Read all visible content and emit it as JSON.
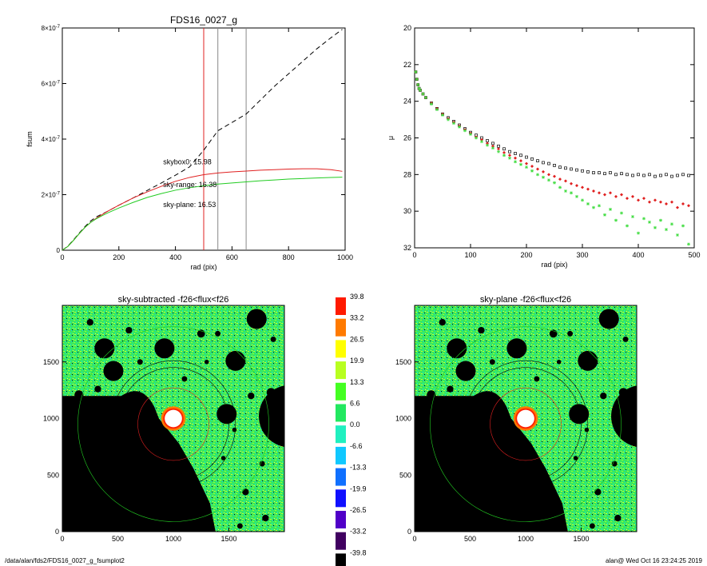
{
  "footer": {
    "path": "/data/alan/fds2/FDS16_0027_g_fsumplot2",
    "stamp": "alan@  Wed Oct 16 23:24:25 2019"
  },
  "chart_data": [
    {
      "type": "line",
      "title": "FDS16_0027_g",
      "xlabel": "rad (pix)",
      "ylabel": "fsum",
      "xlim": [
        0,
        1000
      ],
      "ylim": [
        0,
        8e-07
      ],
      "xticks": [
        0,
        200,
        400,
        600,
        800,
        1000
      ],
      "xtick_labels": [
        "0",
        "200",
        "400",
        "600",
        "800",
        "1000"
      ],
      "yticks": [
        0,
        2e-07,
        4e-07,
        6e-07,
        8e-07
      ],
      "ytick_labels": [
        {
          "base": "0",
          "exp": ""
        },
        {
          "base": "2×10",
          "exp": "-7"
        },
        {
          "base": "4×10",
          "exp": "-7"
        },
        {
          "base": "6×10",
          "exp": "-7"
        },
        {
          "base": "8×10",
          "exp": "-7"
        }
      ],
      "vlines": [
        {
          "x": 500,
          "color": "#e02020"
        },
        {
          "x": 550,
          "color": "#888888"
        },
        {
          "x": 650,
          "color": "#888888"
        }
      ],
      "series": [
        {
          "color": "#000000",
          "dash": true,
          "x": [
            0,
            20,
            40,
            60,
            80,
            100,
            120,
            140,
            160,
            200,
            250,
            300,
            350,
            400,
            450,
            500,
            550,
            600,
            650,
            700,
            750,
            800,
            850,
            900,
            950,
            990
          ],
          "y": [
            0,
            1.5e-08,
            3.8e-08,
            6.2e-08,
            8.5e-08,
            1.05e-07,
            1.2e-07,
            1.3e-07,
            1.4e-07,
            1.62e-07,
            1.88e-07,
            2.15e-07,
            2.42e-07,
            2.7e-07,
            3e-07,
            3.6e-07,
            4.3e-07,
            4.6e-07,
            4.9e-07,
            5.4e-07,
            5.9e-07,
            6.35e-07,
            6.8e-07,
            7.25e-07,
            7.65e-07,
            7.95e-07
          ]
        },
        {
          "color": "#e02020",
          "dash": false,
          "x": [
            0,
            20,
            40,
            60,
            80,
            100,
            120,
            140,
            160,
            200,
            250,
            300,
            350,
            400,
            450,
            500,
            550,
            600,
            650,
            700,
            750,
            800,
            850,
            900,
            950,
            990
          ],
          "y": [
            0,
            1.4e-08,
            3.6e-08,
            6e-08,
            8.2e-08,
            1e-07,
            1.15e-07,
            1.28e-07,
            1.4e-07,
            1.62e-07,
            1.88e-07,
            2.1e-07,
            2.3e-07,
            2.48e-07,
            2.62e-07,
            2.72e-07,
            2.78e-07,
            2.82e-07,
            2.85e-07,
            2.88e-07,
            2.9e-07,
            2.92e-07,
            2.93e-07,
            2.93e-07,
            2.9e-07,
            2.84e-07
          ]
        },
        {
          "color": "#22cc22",
          "dash": false,
          "x": [
            0,
            20,
            40,
            60,
            80,
            100,
            120,
            140,
            160,
            200,
            250,
            300,
            350,
            400,
            450,
            500,
            550,
            600,
            650,
            700,
            750,
            800,
            850,
            900,
            950,
            990
          ],
          "y": [
            0,
            1.4e-08,
            3.6e-08,
            6e-08,
            8.2e-08,
            1e-07,
            1.13e-07,
            1.24e-07,
            1.34e-07,
            1.52e-07,
            1.72e-07,
            1.9e-07,
            2.04e-07,
            2.16e-07,
            2.25e-07,
            2.32e-07,
            2.38e-07,
            2.42e-07,
            2.46e-07,
            2.5e-07,
            2.53e-07,
            2.56e-07,
            2.58e-07,
            2.6e-07,
            2.62e-07,
            2.63e-07
          ]
        }
      ],
      "annotations": [
        {
          "text": "skybox0: 15.98",
          "x": 300,
          "y": 3.1e-07,
          "color": "#000000"
        },
        {
          "text": "sky-range: 16.38",
          "x": 300,
          "y": 2.28e-07,
          "color": "#e02020"
        },
        {
          "text": "sky-plane: 16.53",
          "x": 300,
          "y": 1.55e-07,
          "color": "#22cc22"
        }
      ]
    },
    {
      "type": "scatter",
      "title": "",
      "xlabel": "rad (pix)",
      "ylabel": "μ",
      "xlim": [
        0,
        500
      ],
      "ylim": [
        32,
        20
      ],
      "xticks": [
        0,
        100,
        200,
        300,
        400,
        500
      ],
      "xtick_labels": [
        "0",
        "100",
        "200",
        "300",
        "400",
        "500"
      ],
      "yticks": [
        20,
        22,
        24,
        26,
        28,
        30,
        32
      ],
      "ytick_labels": [
        "20",
        "22",
        "24",
        "26",
        "28",
        "30",
        "32"
      ],
      "series": [
        {
          "color": "#000000",
          "marker": "open-square",
          "x": [
            2,
            4,
            6,
            8,
            10,
            15,
            20,
            30,
            40,
            50,
            60,
            70,
            80,
            90,
            100,
            110,
            120,
            130,
            140,
            150,
            160,
            170,
            180,
            190,
            200,
            210,
            220,
            230,
            240,
            250,
            260,
            270,
            280,
            290,
            300,
            310,
            320,
            330,
            340,
            350,
            360,
            370,
            380,
            390,
            400,
            410,
            420,
            430,
            440,
            450,
            460,
            470,
            480,
            490
          ],
          "y": [
            22.4,
            22.8,
            23.1,
            23.3,
            23.4,
            23.6,
            23.8,
            24.1,
            24.4,
            24.7,
            24.9,
            25.1,
            25.3,
            25.5,
            25.7,
            25.85,
            26.0,
            26.15,
            26.3,
            26.45,
            26.6,
            26.75,
            26.85,
            26.95,
            27.05,
            27.15,
            27.25,
            27.35,
            27.4,
            27.5,
            27.6,
            27.65,
            27.7,
            27.75,
            27.8,
            27.85,
            27.9,
            27.9,
            27.95,
            27.9,
            28.0,
            27.95,
            28.0,
            28.05,
            28.0,
            28.05,
            28.0,
            28.1,
            28.05,
            28.0,
            28.1,
            28.05,
            28.0,
            28.05
          ]
        },
        {
          "color": "#e02020",
          "marker": "diamond",
          "x": [
            2,
            4,
            6,
            8,
            10,
            15,
            20,
            30,
            40,
            50,
            60,
            70,
            80,
            90,
            100,
            110,
            120,
            130,
            140,
            150,
            160,
            170,
            180,
            190,
            200,
            210,
            220,
            230,
            240,
            250,
            260,
            270,
            280,
            290,
            300,
            310,
            320,
            330,
            340,
            350,
            360,
            370,
            380,
            390,
            400,
            410,
            420,
            430,
            440,
            450,
            460,
            470,
            480,
            490
          ],
          "y": [
            22.4,
            22.8,
            23.1,
            23.3,
            23.4,
            23.6,
            23.8,
            24.1,
            24.4,
            24.7,
            24.95,
            25.15,
            25.35,
            25.55,
            25.75,
            25.95,
            26.1,
            26.3,
            26.45,
            26.6,
            26.8,
            26.95,
            27.1,
            27.25,
            27.4,
            27.55,
            27.7,
            27.85,
            28.0,
            28.1,
            28.25,
            28.35,
            28.5,
            28.6,
            28.7,
            28.8,
            28.9,
            29.0,
            29.1,
            29.0,
            29.2,
            29.1,
            29.3,
            29.2,
            29.4,
            29.3,
            29.5,
            29.4,
            29.5,
            29.6,
            29.5,
            29.8,
            29.6,
            29.7
          ]
        },
        {
          "color": "#44dd44",
          "marker": "star",
          "x": [
            2,
            4,
            6,
            8,
            10,
            15,
            20,
            30,
            40,
            50,
            60,
            70,
            80,
            90,
            100,
            110,
            120,
            130,
            140,
            150,
            160,
            170,
            180,
            190,
            200,
            210,
            220,
            230,
            240,
            250,
            260,
            270,
            280,
            290,
            300,
            310,
            320,
            330,
            340,
            350,
            360,
            370,
            380,
            390,
            400,
            410,
            420,
            430,
            440,
            450,
            460,
            470,
            480,
            490
          ],
          "y": [
            22.4,
            22.8,
            23.1,
            23.3,
            23.4,
            23.6,
            23.8,
            24.15,
            24.45,
            24.75,
            25.0,
            25.2,
            25.4,
            25.6,
            25.8,
            26.0,
            26.2,
            26.4,
            26.55,
            26.75,
            26.95,
            27.1,
            27.3,
            27.45,
            27.6,
            27.8,
            28.0,
            28.15,
            28.3,
            28.45,
            28.7,
            28.9,
            29.0,
            29.2,
            29.4,
            29.6,
            29.8,
            29.7,
            30.2,
            29.9,
            30.5,
            30.1,
            30.8,
            30.3,
            31.2,
            30.4,
            30.6,
            30.9,
            30.5,
            31.0,
            30.7,
            31.3,
            30.8,
            31.8
          ]
        }
      ]
    },
    {
      "type": "heatmap",
      "title": "sky-subtracted -f26<flux<f26",
      "xlim": [
        0,
        2000
      ],
      "ylim": [
        0,
        2000
      ],
      "xticks": [
        0,
        500,
        1000,
        1500
      ],
      "xtick_labels": [
        "0",
        "500",
        "1000",
        "1500"
      ],
      "yticks": [
        0,
        500,
        1000,
        1500
      ],
      "ytick_labels": [
        "0",
        "500",
        "1000",
        "1500"
      ]
    },
    {
      "type": "heatmap",
      "title": "sky-plane -f26<flux<f26",
      "xlim": [
        0,
        2000
      ],
      "ylim": [
        0,
        2000
      ],
      "xticks": [
        0,
        500,
        1000,
        1500
      ],
      "xtick_labels": [
        "0",
        "500",
        "1000",
        "1500"
      ],
      "yticks": [
        0,
        500,
        1000,
        1500
      ],
      "ytick_labels": [
        "0",
        "500",
        "1000",
        "1500"
      ]
    },
    {
      "type": "colorbar",
      "levels": [
        "39.8",
        "33.2",
        "26.5",
        "19.9",
        "13.3",
        "6.6",
        "0.0",
        "-6.6",
        "-13.3",
        "-19.9",
        "-26.5",
        "-33.2",
        "-39.8"
      ],
      "colors": [
        "#ff1a00",
        "#ff7a00",
        "#ffff00",
        "#b8ff20",
        "#44ff22",
        "#22e860",
        "#20f0c0",
        "#10c8ff",
        "#1070ff",
        "#1010ff",
        "#5000c8",
        "#400060",
        "#000000"
      ]
    }
  ]
}
